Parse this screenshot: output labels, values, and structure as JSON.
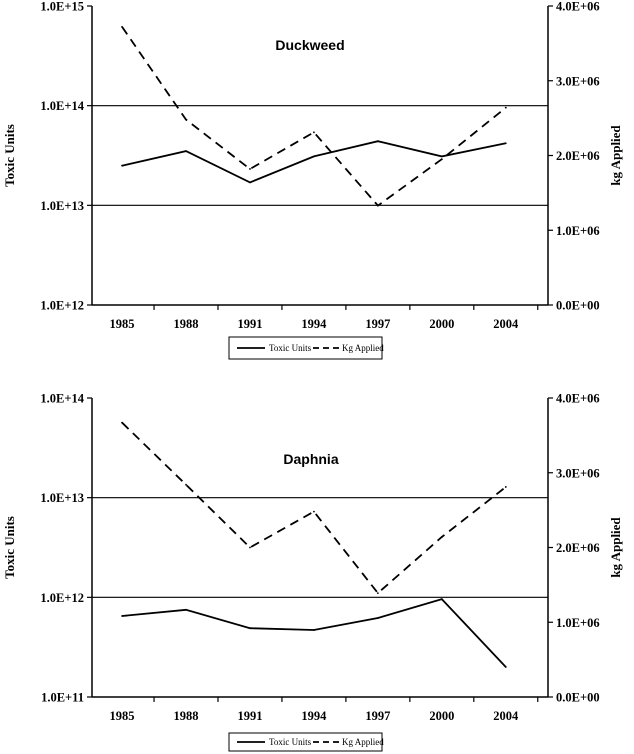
{
  "chart_data": [
    {
      "type": "line",
      "title": "Duckweed",
      "x": [
        "1985",
        "1988",
        "1991",
        "1994",
        "1997",
        "2000",
        "2004"
      ],
      "ylabel": "Toxic Units",
      "y2label": "kg Applied",
      "yscale": "log",
      "ylim": [
        1000000000000.0,
        1000000000000000.0
      ],
      "y_ticks": [
        "1.0E+12",
        "1.0E+13",
        "1.0E+14",
        "1.0E+15"
      ],
      "y2lim": [
        0,
        4000000
      ],
      "y2_ticks": [
        "0.0E+00",
        "1.0E+06",
        "2.0E+06",
        "3.0E+06",
        "4.0E+06"
      ],
      "grid": "horizontal major lines on log axis",
      "legend_position": "bottom-center",
      "series": [
        {
          "name": "Toxic Units",
          "axis": "left",
          "style": "solid",
          "values": [
            25000000000000.0,
            35000000000000.0,
            17000000000000.0,
            31000000000000.0,
            44000000000000.0,
            31000000000000.0,
            42000000000000.0
          ]
        },
        {
          "name": "Kg Applied",
          "axis": "right",
          "style": "dashed",
          "values": [
            3720000,
            2480000,
            1820000,
            2310000,
            1330000,
            1950000,
            2640000
          ]
        }
      ]
    },
    {
      "type": "line",
      "title": "Daphnia",
      "x": [
        "1985",
        "1988",
        "1991",
        "1994",
        "1997",
        "2000",
        "2004"
      ],
      "ylabel": "Toxic Units",
      "y2label": "kg Applied",
      "yscale": "log",
      "ylim": [
        100000000000.0,
        100000000000000.0
      ],
      "y_ticks": [
        "1.0E+11",
        "1.0E+12",
        "1.0E+13",
        "1.0E+14"
      ],
      "y2lim": [
        0,
        4000000
      ],
      "y2_ticks": [
        "0.0E+00",
        "1.0E+06",
        "2.0E+06",
        "3.0E+06",
        "4.0E+06"
      ],
      "grid": "horizontal major lines on log axis",
      "legend_position": "bottom-center",
      "series": [
        {
          "name": "Toxic Units",
          "axis": "left",
          "style": "solid",
          "values": [
            650000000000.0,
            750000000000.0,
            490000000000.0,
            470000000000.0,
            620000000000.0,
            960000000000.0,
            200000000000.0
          ]
        },
        {
          "name": "Kg Applied",
          "axis": "right",
          "style": "dashed",
          "values": [
            3670000,
            2840000,
            2000000,
            2480000,
            1390000,
            2140000,
            2810000
          ]
        }
      ]
    }
  ]
}
